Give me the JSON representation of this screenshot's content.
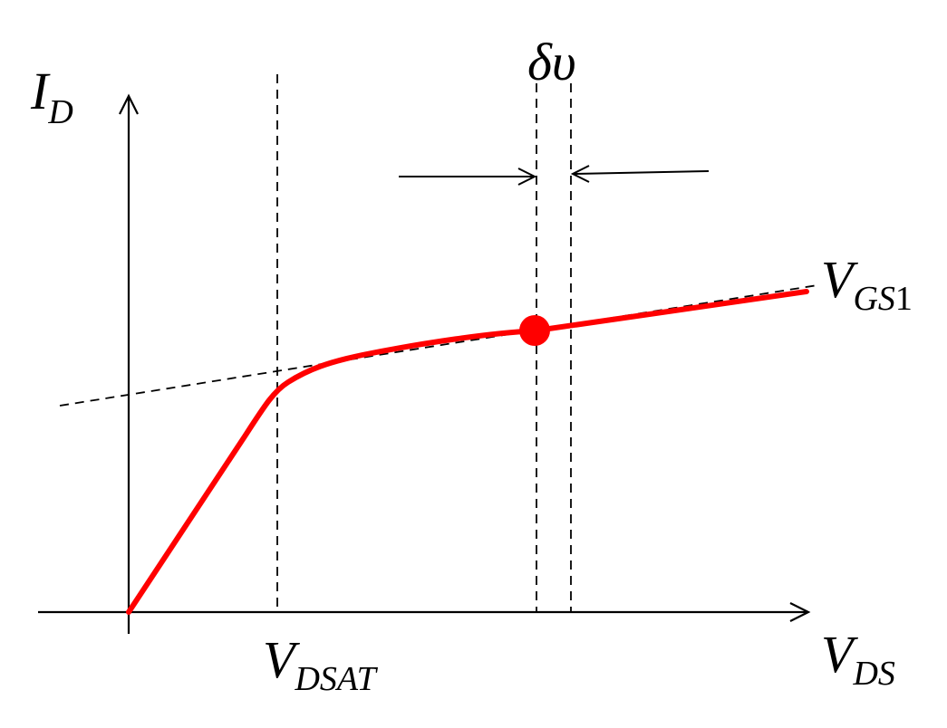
{
  "labels": {
    "y_axis": {
      "main": "I",
      "sub": "D"
    },
    "x_axis": {
      "main": "V",
      "sub": "DS"
    },
    "vdsat": {
      "main": "V",
      "sub": "DSAT"
    },
    "vgs": {
      "main": "V",
      "sub": "GS",
      "sub_num": "1"
    },
    "delta": {
      "symbol": "δυ"
    }
  },
  "colors": {
    "curve": "#ff0000",
    "operating_point": "#ff0000",
    "axis": "#000000",
    "guide": "#000000"
  },
  "icons": {
    "arrow_left": "right-pointing-arrow-icon",
    "arrow_right": "left-pointing-arrow-icon"
  }
}
